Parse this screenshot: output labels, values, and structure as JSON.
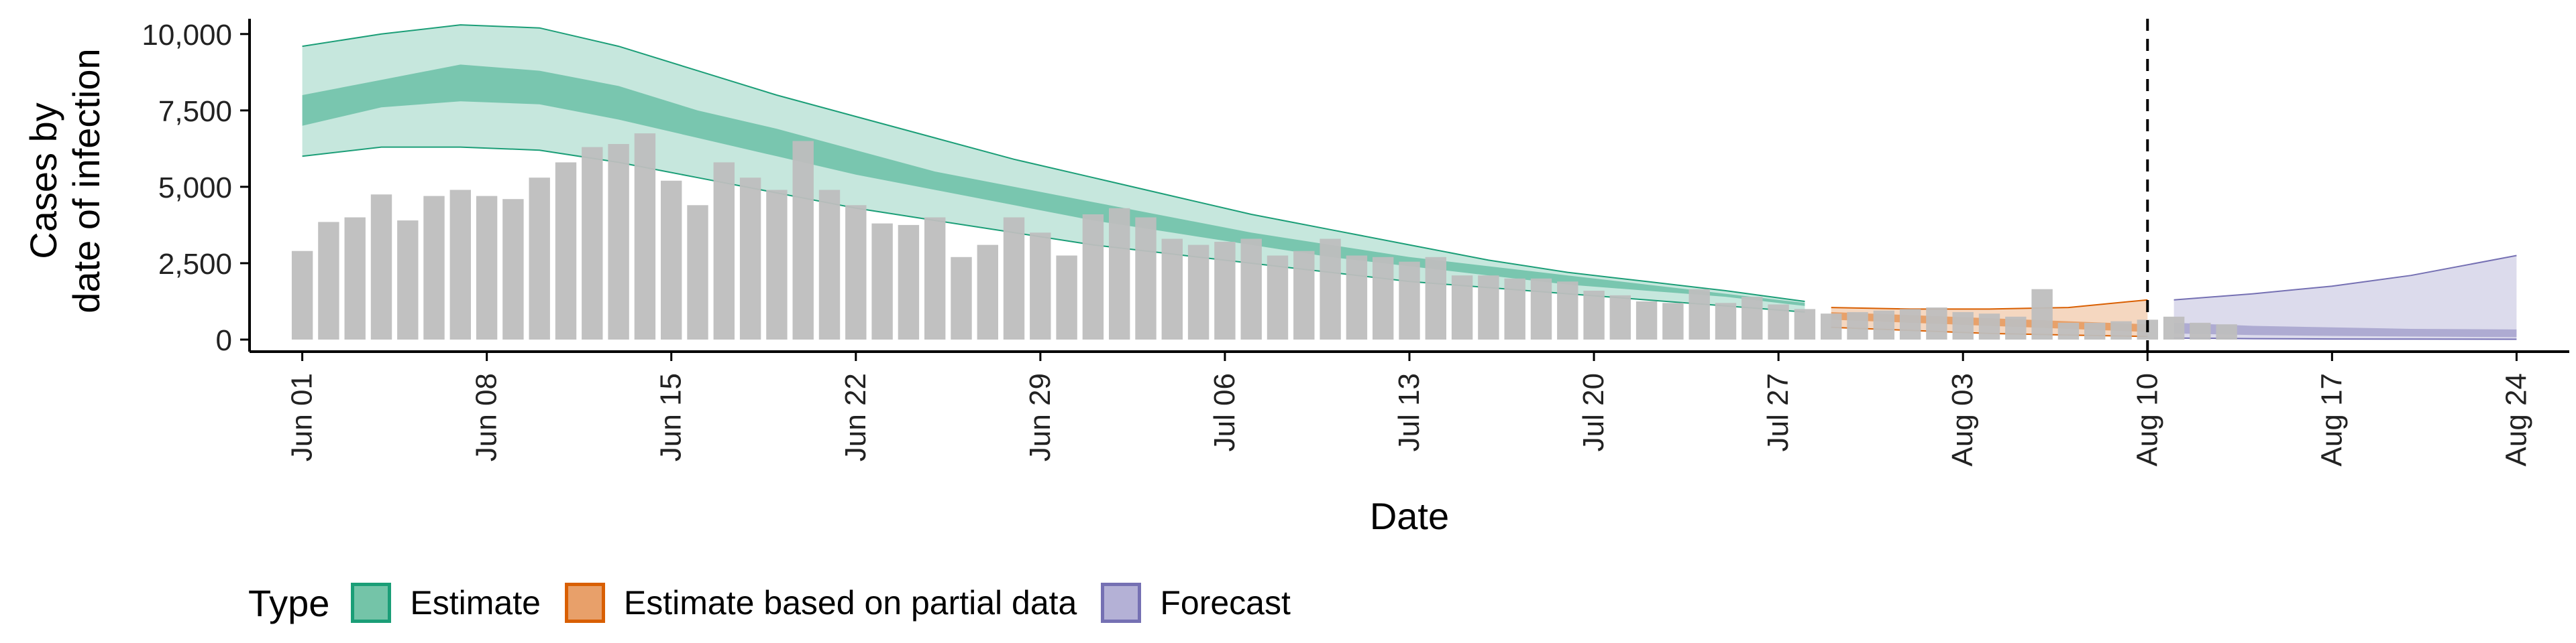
{
  "chart_data": {
    "type": "area",
    "xlabel": "Date",
    "ylabel_lines": [
      "Cases by",
      "date of infection"
    ],
    "x_ticks": [
      "Jun 01",
      "Jun 08",
      "Jun 15",
      "Jun 22",
      "Jun 29",
      "Jul 06",
      "Jul 13",
      "Jul 20",
      "Jul 27",
      "Aug 03",
      "Aug 10",
      "Aug 17",
      "Aug 24"
    ],
    "y_ticks": [
      "0",
      "2,500",
      "5,000",
      "7,500",
      "10,000"
    ],
    "ylim": [
      0,
      10500
    ],
    "xlim": [
      "2020-05-30",
      "2020-08-26"
    ],
    "vline_date": "2020-08-10",
    "grid": false,
    "legend_title": "Type",
    "legend_position": "bottom",
    "colors": {
      "Estimate": "#1b9e77",
      "Estimate based on partial data": "#d95f02",
      "Forecast": "#7570b3",
      "bars": "#bebebe"
    },
    "observed": {
      "start_date": "2020-06-01",
      "values": [
        2900,
        3850,
        4000,
        4750,
        3900,
        4700,
        4900,
        4700,
        4600,
        5300,
        5800,
        6300,
        6400,
        6750,
        5200,
        4400,
        5800,
        5300,
        4900,
        6500,
        4900,
        4400,
        3800,
        3750,
        4000,
        2700,
        3100,
        4000,
        3500,
        2750,
        4100,
        4300,
        4000,
        3300,
        3100,
        3200,
        3300,
        2750,
        2900,
        3300,
        2750,
        2700,
        2550,
        2700,
        2100,
        2100,
        2000,
        2000,
        1900,
        1600,
        1450,
        1250,
        1200,
        1650,
        1200,
        1400,
        1150,
        1000,
        850,
        900,
        950,
        1000,
        1050,
        900,
        850,
        750,
        1650,
        550,
        550,
        600,
        650,
        750,
        550,
        500
      ]
    },
    "series": [
      {
        "name": "Estimate",
        "dates": [
          "2020-06-01",
          "2020-06-04",
          "2020-06-07",
          "2020-06-10",
          "2020-06-13",
          "2020-06-16",
          "2020-06-19",
          "2020-06-22",
          "2020-06-25",
          "2020-06-28",
          "2020-07-01",
          "2020-07-04",
          "2020-07-07",
          "2020-07-10",
          "2020-07-13",
          "2020-07-16",
          "2020-07-19",
          "2020-07-22",
          "2020-07-25",
          "2020-07-28"
        ],
        "lower90": [
          6000,
          6300,
          6300,
          6200,
          5800,
          5300,
          4800,
          4300,
          3900,
          3500,
          3100,
          2800,
          2500,
          2200,
          1900,
          1700,
          1500,
          1300,
          1100,
          900
        ],
        "lower50": [
          7000,
          7600,
          7800,
          7700,
          7200,
          6600,
          6000,
          5400,
          4900,
          4400,
          3900,
          3500,
          3100,
          2700,
          2400,
          2100,
          1800,
          1600,
          1400,
          1100
        ],
        "upper50": [
          8000,
          8500,
          9000,
          8800,
          8300,
          7500,
          6900,
          6200,
          5500,
          5000,
          4500,
          4000,
          3500,
          3100,
          2700,
          2400,
          2100,
          1800,
          1500,
          1200
        ],
        "upper90": [
          9600,
          10000,
          10300,
          10200,
          9600,
          8800,
          8000,
          7300,
          6600,
          5900,
          5300,
          4700,
          4100,
          3600,
          3100,
          2600,
          2200,
          1900,
          1600,
          1250
        ]
      },
      {
        "name": "Estimate based on partial data",
        "dates": [
          "2020-07-29",
          "2020-08-01",
          "2020-08-04",
          "2020-08-07",
          "2020-08-10"
        ],
        "lower90": [
          400,
          300,
          200,
          150,
          100
        ],
        "lower50": [
          650,
          550,
          450,
          350,
          250
        ],
        "upper50": [
          900,
          800,
          700,
          600,
          500
        ],
        "upper90": [
          1050,
          1000,
          1000,
          1050,
          1300
        ]
      },
      {
        "name": "Forecast",
        "dates": [
          "2020-08-11",
          "2020-08-14",
          "2020-08-17",
          "2020-08-20",
          "2020-08-24"
        ],
        "lower90": [
          50,
          30,
          20,
          15,
          10
        ],
        "lower50": [
          200,
          150,
          120,
          100,
          80
        ],
        "upper50": [
          550,
          450,
          400,
          350,
          330
        ],
        "upper90": [
          1300,
          1500,
          1750,
          2100,
          2750
        ]
      }
    ]
  }
}
